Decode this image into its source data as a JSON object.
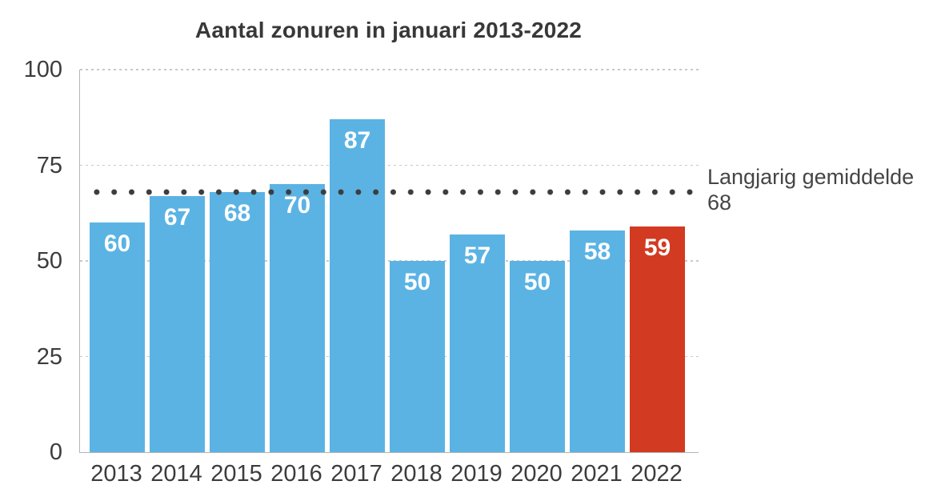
{
  "chart_data": {
    "type": "bar",
    "title": "Aantal zonuren in januari 2013-2022",
    "categories": [
      "2013",
      "2014",
      "2015",
      "2016",
      "2017",
      "2018",
      "2019",
      "2020",
      "2021",
      "2022"
    ],
    "values": [
      60,
      67,
      68,
      70,
      87,
      50,
      57,
      50,
      58,
      59
    ],
    "highlight_index": 9,
    "yticks": [
      0,
      25,
      50,
      75,
      100
    ],
    "ylim": [
      0,
      100
    ],
    "grid": true,
    "legend": "none",
    "average_line": {
      "value": 68,
      "label": "Langjarig gemiddelde",
      "value_label": "68"
    },
    "colors": {
      "bar_default": "#5BB3E4",
      "bar_highlight": "#D23A22",
      "value_label": "#FFFFFF",
      "dots": "#3D3D3D",
      "grid": "#C9C9C9",
      "axis": "#B5B5B5",
      "text": "#3C3C3C"
    }
  }
}
